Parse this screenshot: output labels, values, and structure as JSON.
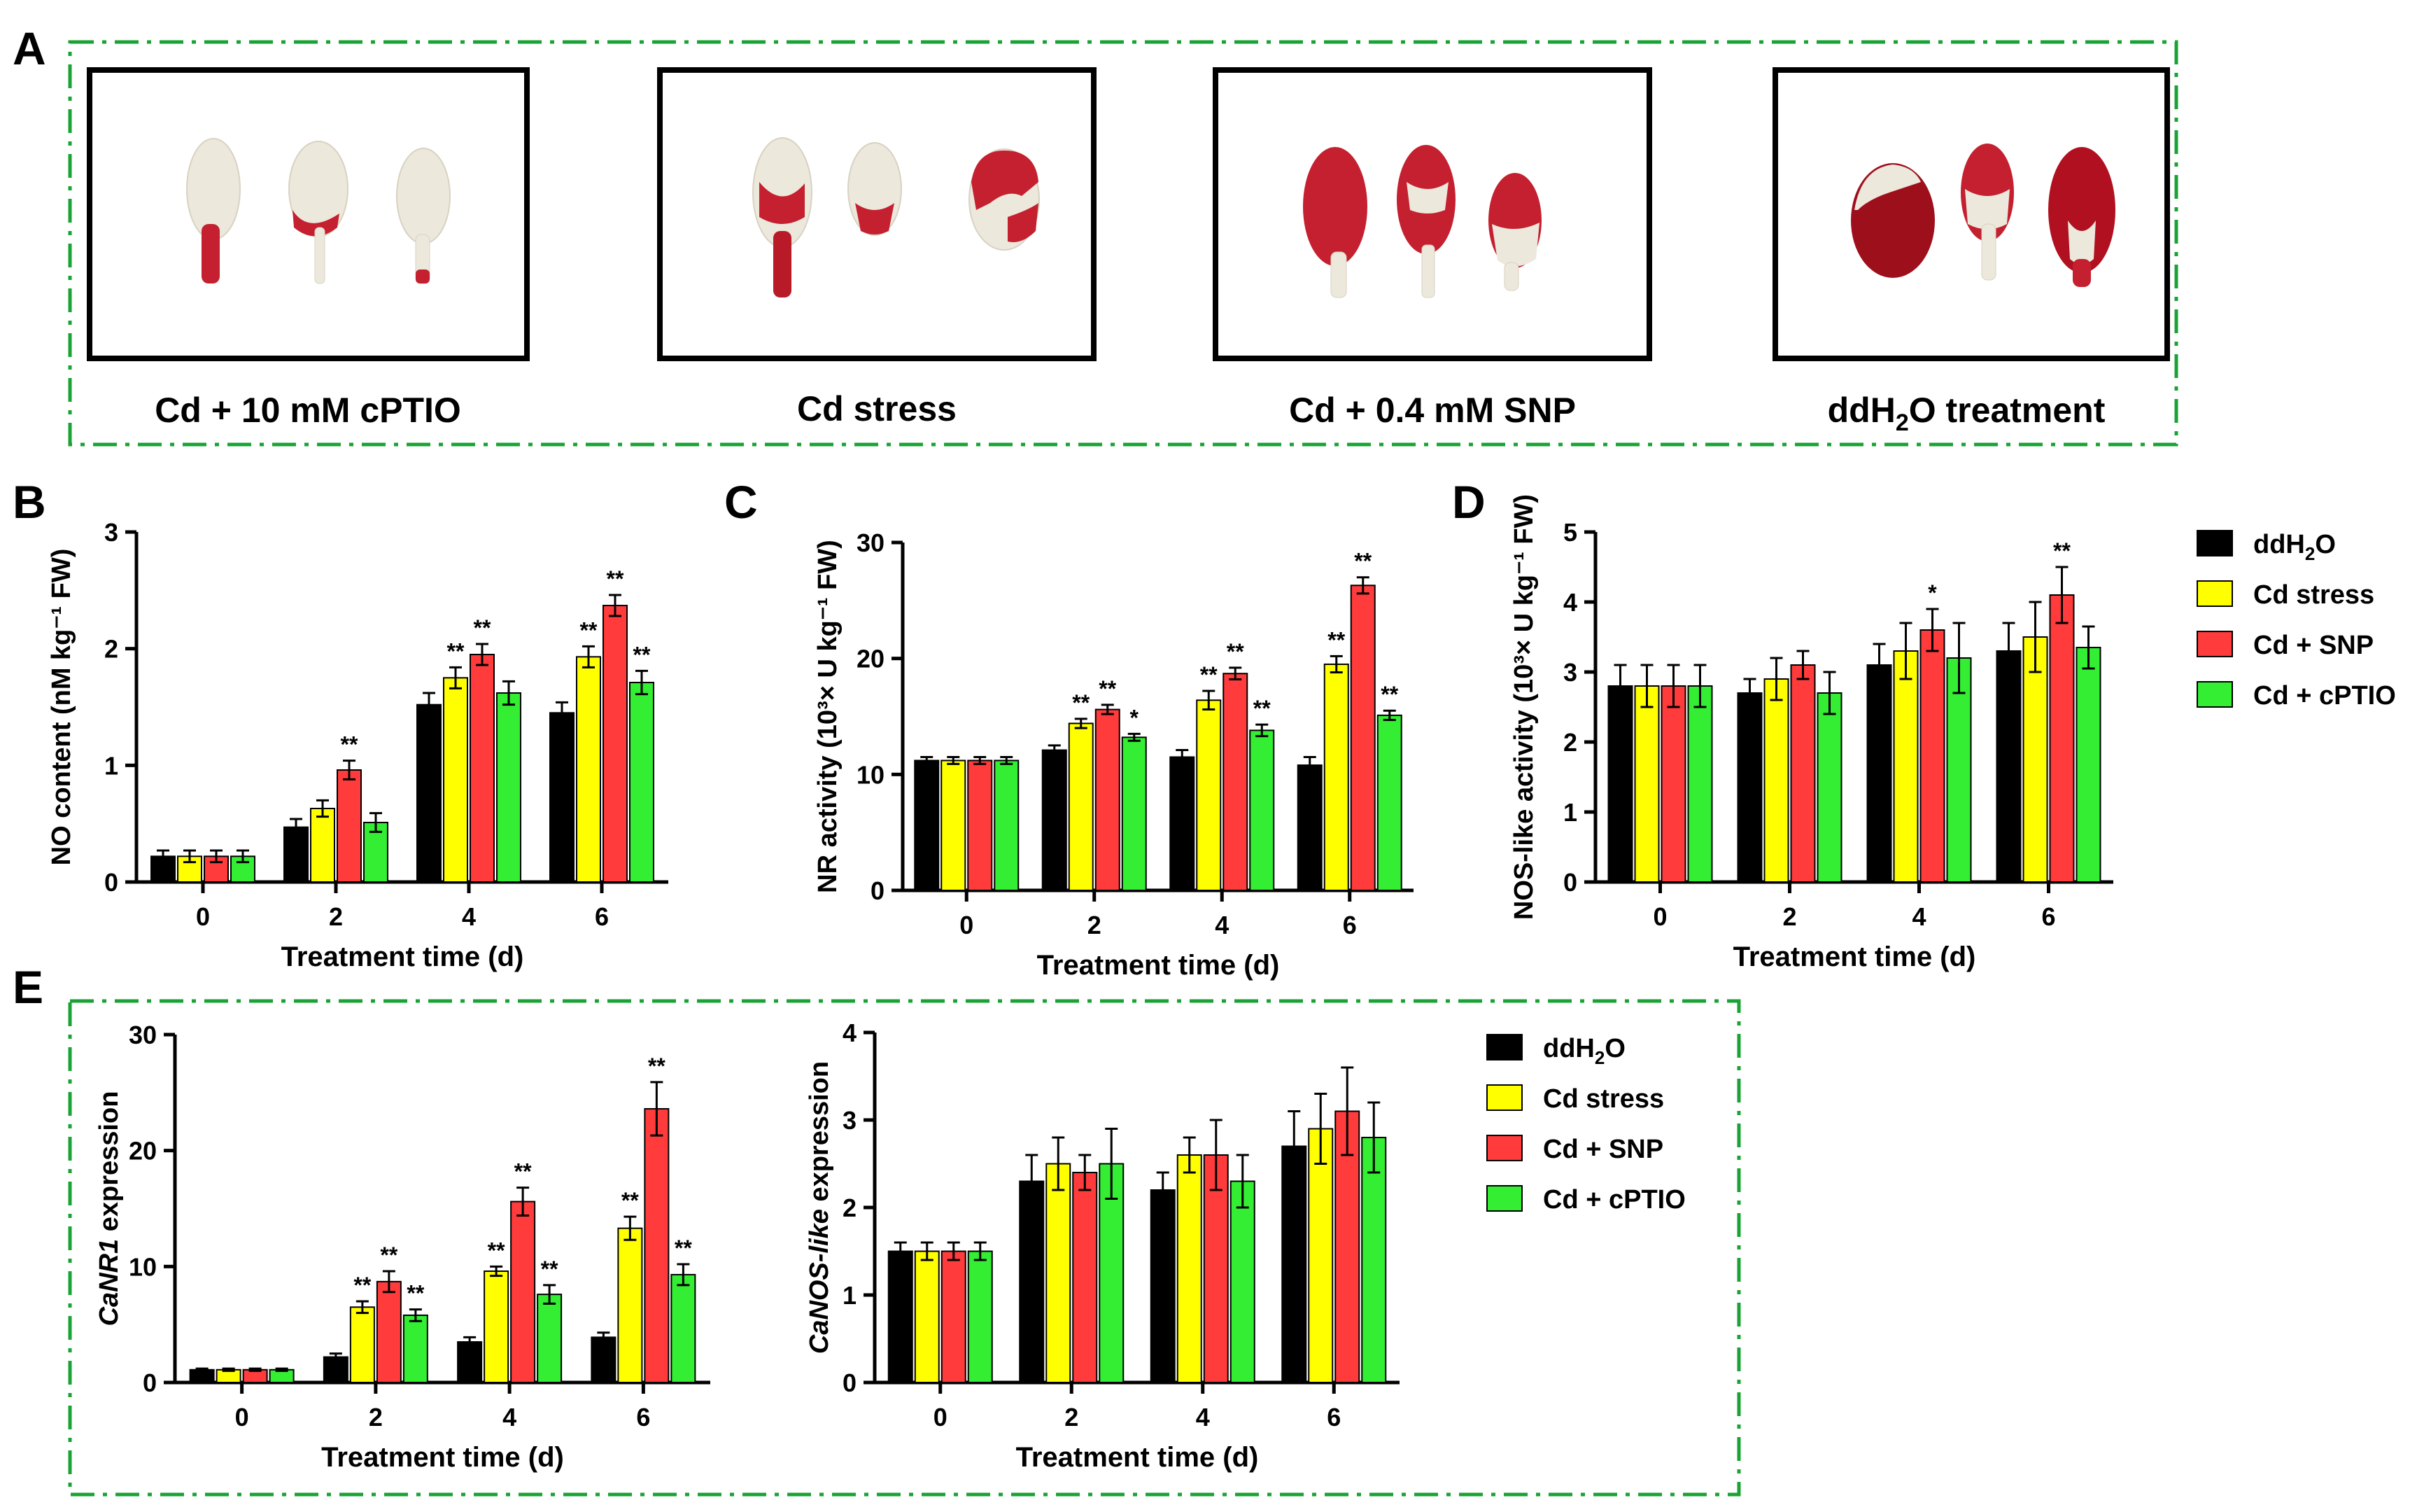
{
  "colors": {
    "ddH2O": "#000000",
    "Cd stress": "#ffff00",
    "Cd + SNP": "#ff3b3b",
    "Cd + cPTIO": "#33ee33",
    "frame": "#1aa334",
    "stain_dark": "#9e0f1c",
    "stain": "#c4202f",
    "seed": "#ece8dc"
  },
  "panel_a": {
    "label": "A",
    "images": [
      {
        "caption": "Cd + 10 mM cPTIO",
        "desc": "seeds-cd-cptio"
      },
      {
        "caption": "Cd stress",
        "desc": "seeds-cd-stress"
      },
      {
        "caption": "Cd + 0.4 mM SNP",
        "desc": "seeds-cd-snp"
      },
      {
        "caption_main": "ddH",
        "caption_sub": "2",
        "caption_tail": "O treatment",
        "desc": "seeds-ddh2o"
      }
    ]
  },
  "legend": {
    "entries": [
      {
        "main": "ddH",
        "sub": "2",
        "tail": "O",
        "key": "ddH2O"
      },
      {
        "main": "Cd stress",
        "sub": "",
        "tail": "",
        "key": "Cd stress"
      },
      {
        "main": "Cd + SNP",
        "sub": "",
        "tail": "",
        "key": "Cd + SNP"
      },
      {
        "main": "Cd + cPTIO",
        "sub": "",
        "tail": "",
        "key": "Cd + cPTIO"
      }
    ]
  },
  "chart_data": [
    {
      "panel": "B",
      "type": "bar",
      "title": "",
      "ylabel": "NO content (nM kg⁻¹ FW)",
      "xlabel": "Treatment time (d)",
      "categories": [
        "0",
        "2",
        "4",
        "6"
      ],
      "ylim": [
        0,
        3
      ],
      "yticks": [
        0,
        1,
        2,
        3
      ],
      "series": [
        {
          "name": "ddH2O",
          "values": [
            0.22,
            0.47,
            1.52,
            1.45
          ],
          "errors": [
            0.05,
            0.07,
            0.1,
            0.09
          ],
          "stars": [
            "",
            "",
            "",
            ""
          ]
        },
        {
          "name": "Cd stress",
          "values": [
            0.22,
            0.63,
            1.75,
            1.93
          ],
          "errors": [
            0.05,
            0.07,
            0.09,
            0.09
          ],
          "stars": [
            "",
            "",
            "**",
            "**"
          ]
        },
        {
          "name": "Cd + SNP",
          "values": [
            0.22,
            0.96,
            1.95,
            2.37
          ],
          "errors": [
            0.05,
            0.08,
            0.09,
            0.09
          ],
          "stars": [
            "",
            "**",
            "**",
            "**"
          ]
        },
        {
          "name": "Cd + cPTIO",
          "values": [
            0.22,
            0.51,
            1.62,
            1.71
          ],
          "errors": [
            0.05,
            0.08,
            0.1,
            0.1
          ],
          "stars": [
            "",
            "",
            "",
            "**"
          ]
        }
      ]
    },
    {
      "panel": "C",
      "type": "bar",
      "title": "",
      "ylabel": "NR activity (10³× U kg⁻¹ FW)",
      "xlabel": "Treatment time (d)",
      "categories": [
        "0",
        "2",
        "4",
        "6"
      ],
      "ylim": [
        0,
        30
      ],
      "yticks": [
        0,
        10,
        20,
        30
      ],
      "series": [
        {
          "name": "ddH2O",
          "values": [
            11.2,
            12.1,
            11.5,
            10.8
          ],
          "errors": [
            0.3,
            0.4,
            0.6,
            0.7
          ],
          "stars": [
            "",
            "",
            "",
            ""
          ]
        },
        {
          "name": "Cd stress",
          "values": [
            11.2,
            14.4,
            16.4,
            19.5
          ],
          "errors": [
            0.3,
            0.4,
            0.8,
            0.7
          ],
          "stars": [
            "",
            "**",
            "**",
            "**"
          ]
        },
        {
          "name": "Cd + SNP",
          "values": [
            11.2,
            15.6,
            18.7,
            26.3
          ],
          "errors": [
            0.3,
            0.4,
            0.5,
            0.7
          ],
          "stars": [
            "",
            "**",
            "**",
            "**"
          ]
        },
        {
          "name": "Cd + cPTIO",
          "values": [
            11.2,
            13.2,
            13.8,
            15.1
          ],
          "errors": [
            0.3,
            0.3,
            0.5,
            0.4
          ],
          "stars": [
            "",
            "*",
            "**",
            "**"
          ]
        }
      ]
    },
    {
      "panel": "D",
      "type": "bar",
      "title": "",
      "ylabel": "NOS-like activity (10³× U kg⁻¹ FW)",
      "xlabel": "Treatment time (d)",
      "categories": [
        "0",
        "2",
        "4",
        "6"
      ],
      "ylim": [
        0,
        5
      ],
      "yticks": [
        0,
        1,
        2,
        3,
        4,
        5
      ],
      "series": [
        {
          "name": "ddH2O",
          "values": [
            2.8,
            2.7,
            3.1,
            3.3
          ],
          "errors": [
            0.3,
            0.2,
            0.3,
            0.4
          ],
          "stars": [
            "",
            "",
            "",
            ""
          ]
        },
        {
          "name": "Cd stress",
          "values": [
            2.8,
            2.9,
            3.3,
            3.5
          ],
          "errors": [
            0.3,
            0.3,
            0.4,
            0.5
          ],
          "stars": [
            "",
            "",
            "",
            ""
          ]
        },
        {
          "name": "Cd + SNP",
          "values": [
            2.8,
            3.1,
            3.6,
            4.1
          ],
          "errors": [
            0.3,
            0.2,
            0.3,
            0.4
          ],
          "stars": [
            "",
            "",
            "*",
            "**"
          ]
        },
        {
          "name": "Cd + cPTIO",
          "values": [
            2.8,
            2.7,
            3.2,
            3.35
          ],
          "errors": [
            0.3,
            0.3,
            0.5,
            0.3
          ],
          "stars": [
            "",
            "",
            "",
            ""
          ]
        }
      ]
    },
    {
      "panel": "E-left",
      "type": "bar",
      "title": "",
      "ylabel_italic": "CaNR1",
      "ylabel_rest": " expression",
      "xlabel": "Treatment time (d)",
      "categories": [
        "0",
        "2",
        "4",
        "6"
      ],
      "ylim": [
        0,
        30
      ],
      "yticks": [
        0,
        10,
        20,
        30
      ],
      "series": [
        {
          "name": "ddH2O",
          "values": [
            1.1,
            2.2,
            3.5,
            3.9
          ],
          "errors": [
            0.1,
            0.3,
            0.4,
            0.4
          ],
          "stars": [
            "",
            "",
            "",
            ""
          ]
        },
        {
          "name": "Cd stress",
          "values": [
            1.1,
            6.5,
            9.6,
            13.3
          ],
          "errors": [
            0.1,
            0.5,
            0.4,
            1.0
          ],
          "stars": [
            "",
            "**",
            "**",
            "**"
          ]
        },
        {
          "name": "Cd + SNP",
          "values": [
            1.1,
            8.7,
            15.6,
            23.6
          ],
          "errors": [
            0.1,
            0.9,
            1.2,
            2.3
          ],
          "stars": [
            "",
            "**",
            "**",
            "**"
          ]
        },
        {
          "name": "Cd + cPTIO",
          "values": [
            1.1,
            5.8,
            7.6,
            9.3
          ],
          "errors": [
            0.1,
            0.5,
            0.8,
            0.9
          ],
          "stars": [
            "",
            "**",
            "**",
            "**"
          ]
        }
      ]
    },
    {
      "panel": "E-right",
      "type": "bar",
      "title": "",
      "ylabel_italic": "CaNOS-like",
      "ylabel_rest": " expression",
      "xlabel": "Treatment time (d)",
      "categories": [
        "0",
        "2",
        "4",
        "6"
      ],
      "ylim": [
        0,
        4
      ],
      "yticks": [
        0,
        1,
        2,
        3,
        4
      ],
      "series": [
        {
          "name": "ddH2O",
          "values": [
            1.5,
            2.3,
            2.2,
            2.7
          ],
          "errors": [
            0.1,
            0.3,
            0.2,
            0.4
          ],
          "stars": [
            "",
            "",
            "",
            ""
          ]
        },
        {
          "name": "Cd stress",
          "values": [
            1.5,
            2.5,
            2.6,
            2.9
          ],
          "errors": [
            0.1,
            0.3,
            0.2,
            0.4
          ],
          "stars": [
            "",
            "",
            "",
            ""
          ]
        },
        {
          "name": "Cd + SNP",
          "values": [
            1.5,
            2.4,
            2.6,
            3.1
          ],
          "errors": [
            0.1,
            0.2,
            0.4,
            0.5
          ],
          "stars": [
            "",
            "",
            "",
            ""
          ]
        },
        {
          "name": "Cd + cPTIO",
          "values": [
            1.5,
            2.5,
            2.3,
            2.8
          ],
          "errors": [
            0.1,
            0.4,
            0.3,
            0.4
          ],
          "stars": [
            "",
            "",
            "",
            ""
          ]
        }
      ]
    }
  ],
  "panel_labels": {
    "b": "B",
    "c": "C",
    "d": "D",
    "e": "E"
  }
}
